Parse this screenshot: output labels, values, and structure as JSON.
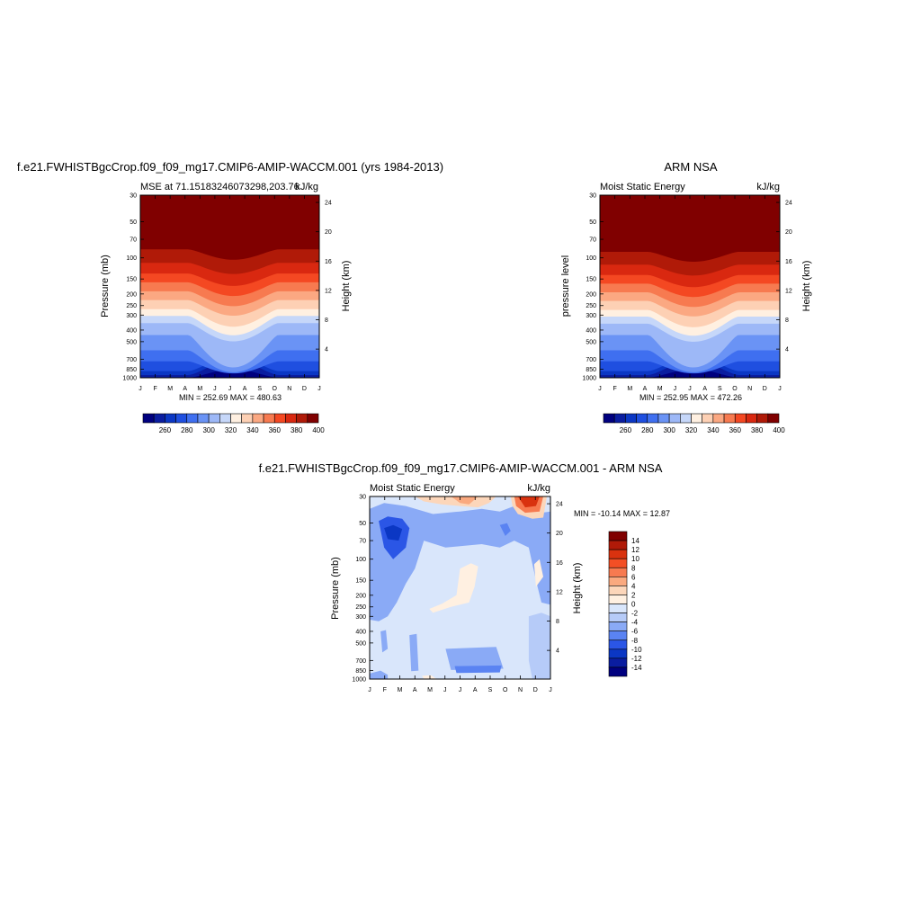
{
  "palette": {
    "mse": [
      "#00007f",
      "#0a1da0",
      "#0b37c4",
      "#1f4fe0",
      "#3f6ff0",
      "#6a93f5",
      "#9db8f7",
      "#c6d7f9",
      "#fff0e1",
      "#fdd0b4",
      "#fba882",
      "#f77a50",
      "#f44822",
      "#d92810",
      "#b01a08",
      "#800000"
    ],
    "diff": [
      "#00007f",
      "#0a1da0",
      "#0b37c4",
      "#2b56e6",
      "#5a83f2",
      "#8aaaf6",
      "#b6cbf8",
      "#d9e6fb",
      "#fff0e1",
      "#fcd6ba",
      "#faa97f",
      "#f77a50",
      "#f34f25",
      "#d9320f",
      "#b01a08",
      "#800000"
    ]
  },
  "months": [
    "J",
    "F",
    "M",
    "A",
    "M",
    "J",
    "J",
    "A",
    "S",
    "O",
    "N",
    "D",
    "J"
  ],
  "pressure_ticks": [
    "30",
    "50",
    "70",
    "100",
    "150",
    "200",
    "250",
    "300",
    "400",
    "500",
    "700",
    "850",
    "1000"
  ],
  "height_ticks": [
    "24",
    "20",
    "16",
    "12",
    "8",
    "4"
  ],
  "panel1": {
    "title": "f.e21.FWHISTBgcCrop.f09_f09_mg17.CMIP6-AMIP-WACCM.001 (yrs 1984-2013)",
    "left_label": "MSE at 71.15183246073298,203.76",
    "right_label": "kJ/kg",
    "ylabel": "Pressure (mb)",
    "ylabel_right": "Height (km)",
    "minmax": "MIN = 252.69 MAX = 480.63"
  },
  "panel2": {
    "title": "ARM NSA",
    "left_label": "Moist Static Energy",
    "right_label": "kJ/kg",
    "ylabel": "pressure level",
    "ylabel_right": "Height (km)",
    "minmax": "MIN = 252.95 MAX = 472.26"
  },
  "panel3": {
    "title": "f.e21.FWHISTBgcCrop.f09_f09_mg17.CMIP6-AMIP-WACCM.001 - ARM NSA",
    "left_label": "Moist Static Energy",
    "right_label": "kJ/kg",
    "ylabel": "Pressure (mb)",
    "ylabel_right": "Height (km)",
    "minmax": "MIN = -10.14 MAX =  12.87"
  },
  "colorbar_mse": {
    "labels": [
      "260",
      "280",
      "300",
      "320",
      "340",
      "360",
      "380",
      "400"
    ]
  },
  "colorbar_diff": {
    "labels": [
      "14",
      "12",
      "10",
      "8",
      "6",
      "4",
      "2",
      "0",
      "-2",
      "-4",
      "-6",
      "-8",
      "-10",
      "-12",
      "-14"
    ]
  },
  "chart_data": [
    {
      "type": "heatmap",
      "title": "f.e21.FWHISTBgcCrop.f09_f09_mg17.CMIP6-AMIP-WACCM.001 (yrs 1984-2013)",
      "subtitle": "MSE at 71.15183246073298,203.76",
      "units": "kJ/kg",
      "x": [
        "J",
        "F",
        "M",
        "A",
        "M",
        "J",
        "J",
        "A",
        "S",
        "O",
        "N",
        "D",
        "J"
      ],
      "y": [
        "30",
        "50",
        "70",
        "100",
        "150",
        "200",
        "250",
        "300",
        "400",
        "500",
        "700",
        "850",
        "1000"
      ],
      "ylabel": "Pressure (mb)",
      "ylabel_right": "Height (km)",
      "min": 252.69,
      "max": 480.63,
      "contour_levels": [
        250,
        260,
        270,
        280,
        290,
        300,
        310,
        320,
        330,
        340,
        350,
        360,
        370,
        380,
        390,
        400
      ],
      "colorbar_ticks": [
        260,
        280,
        300,
        320,
        340,
        360,
        380,
        400
      ]
    },
    {
      "type": "heatmap",
      "title": "ARM NSA",
      "subtitle": "Moist Static Energy",
      "units": "kJ/kg",
      "x": [
        "J",
        "F",
        "M",
        "A",
        "M",
        "J",
        "J",
        "A",
        "S",
        "O",
        "N",
        "D",
        "J"
      ],
      "y": [
        "30",
        "50",
        "70",
        "100",
        "150",
        "200",
        "250",
        "300",
        "400",
        "500",
        "700",
        "850",
        "1000"
      ],
      "ylabel": "pressure level",
      "ylabel_right": "Height (km)",
      "min": 252.95,
      "max": 472.26,
      "contour_levels": [
        250,
        260,
        270,
        280,
        290,
        300,
        310,
        320,
        330,
        340,
        350,
        360,
        370,
        380,
        390,
        400
      ],
      "colorbar_ticks": [
        260,
        280,
        300,
        320,
        340,
        360,
        380,
        400
      ]
    },
    {
      "type": "heatmap",
      "title": "f.e21.FWHISTBgcCrop.f09_f09_mg17.CMIP6-AMIP-WACCM.001 - ARM NSA",
      "subtitle": "Moist Static Energy",
      "units": "kJ/kg",
      "x": [
        "J",
        "F",
        "M",
        "A",
        "M",
        "J",
        "J",
        "A",
        "S",
        "O",
        "N",
        "D",
        "J"
      ],
      "y": [
        "30",
        "50",
        "70",
        "100",
        "150",
        "200",
        "250",
        "300",
        "400",
        "500",
        "700",
        "850",
        "1000"
      ],
      "ylabel": "Pressure (mb)",
      "ylabel_right": "Height (km)",
      "min": -10.14,
      "max": 12.87,
      "contour_levels": [
        -14,
        -12,
        -10,
        -8,
        -6,
        -4,
        -2,
        0,
        2,
        4,
        6,
        8,
        10,
        12,
        14
      ],
      "colorbar_ticks": [
        14,
        12,
        10,
        8,
        6,
        4,
        2,
        0,
        -2,
        -4,
        -6,
        -8,
        -10,
        -12,
        -14
      ]
    }
  ]
}
